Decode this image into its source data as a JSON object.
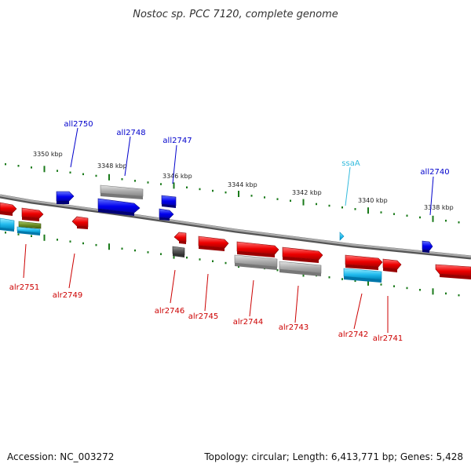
{
  "title": "Nostoc sp. PCC 7120, complete genome",
  "footer": {
    "accession": "Accession: NC_003272",
    "summary": "Topology: circular; Length: 6,413,771 bp; Genes: 5,428"
  },
  "scale_labels": [
    "3350 kbp",
    "3348 kbp",
    "3346 kbp",
    "3344 kbp",
    "3342 kbp",
    "3340 kbp",
    "3338 kbp"
  ],
  "gene_labels": {
    "top": [
      "all2750",
      "all2748",
      "all2747",
      "ssaA",
      "all2740"
    ],
    "bottom": [
      "alr2751",
      "alr2749",
      "alr2746",
      "alr2745",
      "alr2744",
      "alr2743",
      "alr2742",
      "alr2741"
    ]
  },
  "colors": {
    "forward_red": "#ff0000",
    "reverse_blue": "#0000ee",
    "rna_cyan": "#33ccee",
    "pseudo_gray": "#aaaaaa",
    "axis_gray": "#888888",
    "tick_green": "#1a7a1a",
    "label_blue": "#0000cc",
    "label_red": "#cc0000",
    "label_cyan": "#33bbdd"
  }
}
